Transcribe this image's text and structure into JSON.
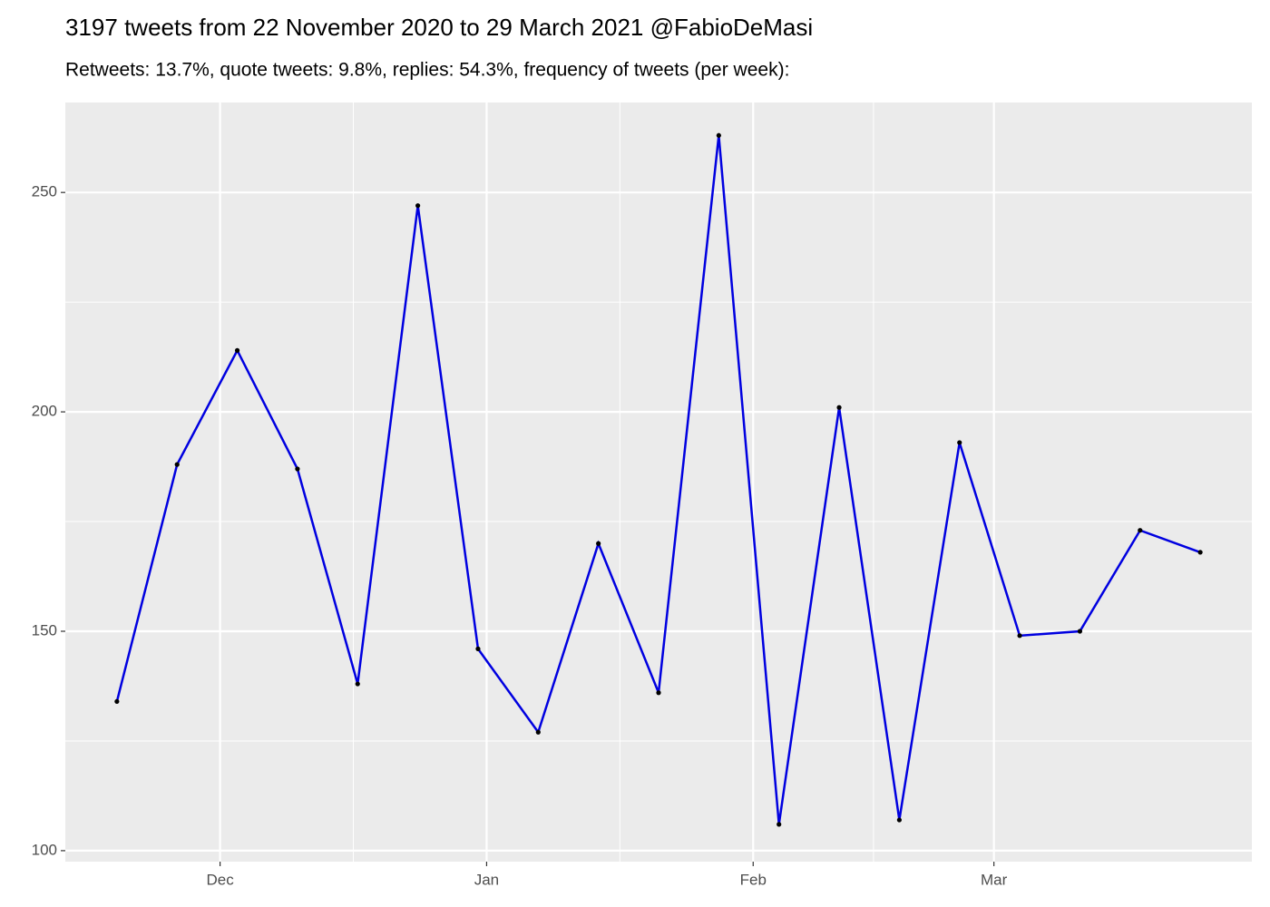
{
  "chart_data": {
    "type": "line",
    "title": "3197 tweets from 22 November 2020 to 29 March 2021 @FabioDeMasi",
    "subtitle": "Retweets: 13.7%, quote tweets: 9.8%, replies: 54.3%, frequency of tweets (per week):",
    "x": [
      "2020-11-19",
      "2020-11-26",
      "2020-12-03",
      "2020-12-10",
      "2020-12-17",
      "2020-12-24",
      "2020-12-31",
      "2021-01-07",
      "2021-01-14",
      "2021-01-21",
      "2021-01-28",
      "2021-02-04",
      "2021-02-11",
      "2021-02-18",
      "2021-02-25",
      "2021-03-04",
      "2021-03-11",
      "2021-03-18",
      "2021-03-25"
    ],
    "series": [
      {
        "color": "#0000e0",
        "marker_color": "#000000",
        "values": [
          134,
          188,
          214,
          187,
          138,
          247,
          146,
          127,
          170,
          136,
          263,
          106,
          201,
          107,
          193,
          149,
          150,
          173,
          168
        ]
      }
    ],
    "xlim": [
      "2020-11-13",
      "2021-03-31"
    ],
    "xticks": [
      {
        "value": "2020-12-01",
        "label": "Dec"
      },
      {
        "value": "2021-01-01",
        "label": "Jan"
      },
      {
        "value": "2021-02-01",
        "label": "Feb"
      },
      {
        "value": "2021-03-01",
        "label": "Mar"
      }
    ],
    "ylim": [
      97.5,
      270.5
    ],
    "yticks": [
      100,
      150,
      200,
      250
    ],
    "grid": true
  }
}
